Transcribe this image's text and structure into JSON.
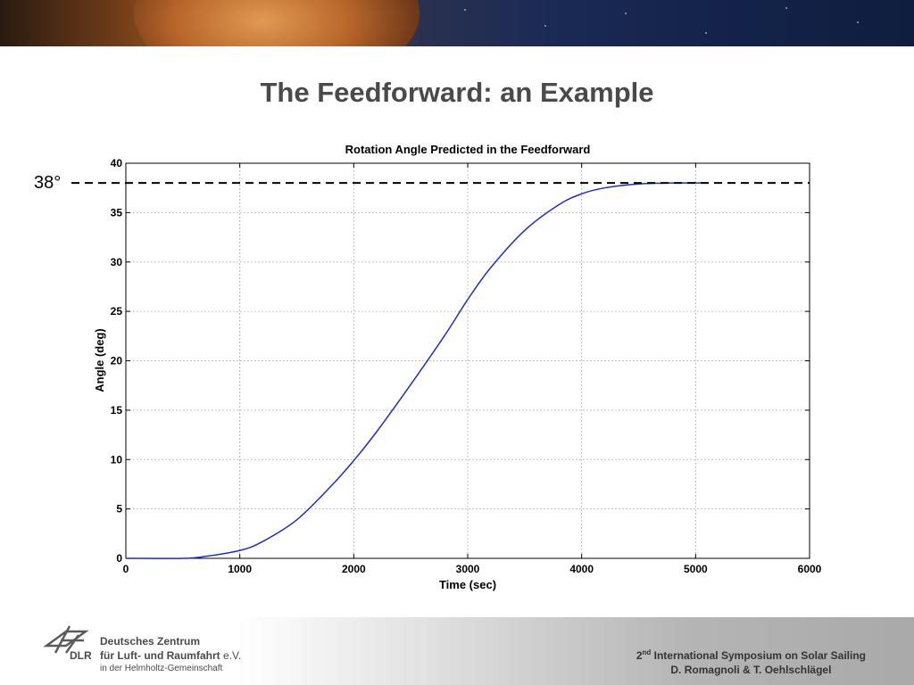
{
  "slide": {
    "title": "The Feedforward: an Example"
  },
  "annotation": {
    "label": "38°"
  },
  "footer": {
    "org_abbr": "DLR",
    "org_line1": "Deutsches Zentrum",
    "org_line2_main": "für Luft- und Raumfahrt",
    "org_line2_suffix": "e.V.",
    "org_line3": "in der Helmholtz-Gemeinschaft",
    "symposium_ordinal": "2",
    "symposium_superscript": "nd",
    "symposium_rest": "International Symposium on Solar Sailing",
    "authors": "D. Romagnoli & T. Oehlschlägel"
  },
  "chart_data": {
    "type": "line",
    "title": "Rotation Angle Predicted in the Feedforward",
    "xlabel": "Time (sec)",
    "ylabel": "Angle (deg)",
    "xlim": [
      0,
      6000
    ],
    "ylim": [
      0,
      40
    ],
    "xticks": [
      0,
      1000,
      2000,
      3000,
      4000,
      5000,
      6000
    ],
    "yticks": [
      0,
      5,
      10,
      15,
      20,
      25,
      30,
      35,
      40
    ],
    "grid": true,
    "series": [
      {
        "color": "#1f2fb8",
        "x": [
          0,
          500,
          700,
          1000,
          1200,
          1500,
          1800,
          2000,
          2200,
          2500,
          2800,
          3000,
          3200,
          3500,
          3800,
          4000,
          4200,
          4500,
          4800,
          5100
        ],
        "y": [
          0,
          0,
          0.2,
          0.8,
          1.7,
          3.9,
          7.3,
          9.9,
          12.8,
          17.6,
          22.6,
          26.2,
          29.4,
          33.2,
          35.8,
          36.9,
          37.5,
          37.9,
          38.0,
          38.0
        ]
      }
    ],
    "reference_line": {
      "y": 38,
      "style": "dashed",
      "color": "#000000"
    }
  }
}
